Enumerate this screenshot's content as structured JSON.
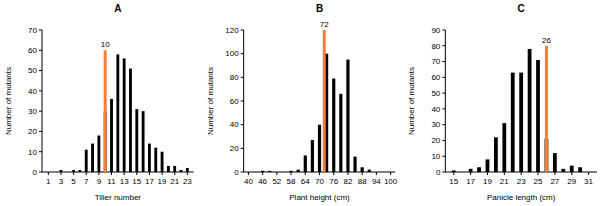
{
  "chart_data": [
    {
      "type": "bar",
      "title": "A",
      "x_label": "Tiller number",
      "y_label": "Number of mutants",
      "color": "#000000",
      "x": [
        3,
        5,
        6,
        7,
        8,
        9,
        10,
        11,
        12,
        13,
        14,
        15,
        16,
        17,
        18,
        19,
        20,
        21,
        22,
        23
      ],
      "values": [
        1,
        1,
        1,
        11,
        14,
        18,
        30,
        36,
        58,
        56,
        51,
        31,
        30,
        14,
        12,
        10,
        3,
        3,
        1,
        2
      ],
      "xlim": [
        0,
        24
      ],
      "ylim": [
        0,
        70
      ],
      "xticks": [
        1,
        3,
        5,
        7,
        9,
        11,
        13,
        15,
        17,
        19,
        21,
        23
      ],
      "yticks": [
        0,
        10,
        20,
        30,
        40,
        50,
        60,
        70
      ],
      "annotations": [
        {
          "x": 10,
          "y": 60,
          "text": "10",
          "color": "#f0803c"
        }
      ]
    },
    {
      "type": "bar",
      "title": "B",
      "x_label": "Plant height (cm)",
      "y_label": "Number of mutants",
      "color": "#000000",
      "x": [
        46,
        49,
        58,
        61,
        64,
        67,
        70,
        73,
        76,
        79,
        82,
        85,
        88,
        91
      ],
      "values": [
        1,
        1,
        1,
        2,
        14,
        27,
        40,
        100,
        79,
        66,
        95,
        13,
        4,
        2
      ],
      "xlim": [
        38,
        102
      ],
      "ylim": [
        0,
        120
      ],
      "xticks": [
        40,
        46,
        52,
        58,
        64,
        70,
        76,
        82,
        88,
        94,
        100
      ],
      "yticks": [
        0,
        20,
        40,
        60,
        80,
        100,
        120
      ],
      "annotations": [
        {
          "x": 72,
          "y": 120,
          "text": "72",
          "color": "#f0803c"
        }
      ]
    },
    {
      "type": "bar",
      "title": "C",
      "x_label": "Panicle length (cm)",
      "y_label": "Number of mutants",
      "color": "#000000",
      "x": [
        15,
        17,
        18,
        19,
        20,
        21,
        22,
        23,
        24,
        25,
        26,
        27,
        28,
        29,
        30
      ],
      "values": [
        1,
        2,
        3,
        8,
        22,
        31,
        63,
        63,
        78,
        71,
        21,
        12,
        2,
        4,
        3
      ],
      "xlim": [
        14,
        32
      ],
      "ylim": [
        0,
        90
      ],
      "xticks": [
        15,
        17,
        19,
        21,
        23,
        25,
        27,
        29,
        31
      ],
      "yticks": [
        0,
        10,
        20,
        30,
        40,
        50,
        60,
        70,
        80,
        90
      ],
      "annotations": [
        {
          "x": 26,
          "y": 80,
          "text": "26",
          "color": "#f0803c"
        }
      ]
    }
  ]
}
